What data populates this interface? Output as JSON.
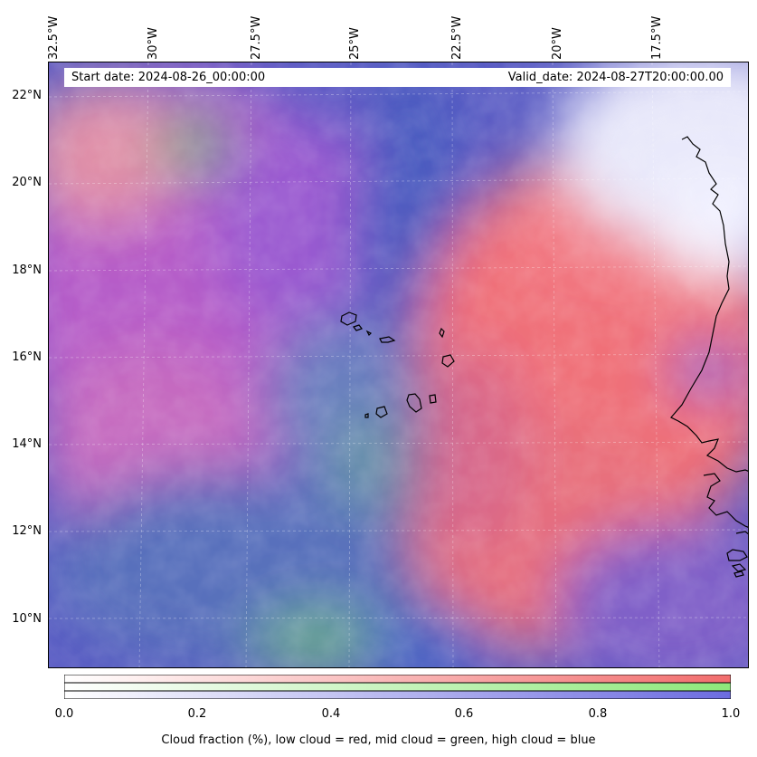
{
  "header": {
    "start_date": "Start date: 2024-08-26_00:00:00",
    "valid_date": "Valid_date: 2024-08-27T20:00:00.00"
  },
  "lon_labels": [
    "32.5°W",
    "30°W",
    "27.5°W",
    "25°W",
    "22.5°W",
    "20°W",
    "17.5°W"
  ],
  "lat_labels": [
    "22°N",
    "20°N",
    "18°N",
    "16°N",
    "14°N",
    "12°N",
    "10°N"
  ],
  "colorbar": {
    "ticks": [
      "0.0",
      "0.2",
      "0.4",
      "0.6",
      "0.8",
      "1.0"
    ],
    "label": "Cloud fraction (%), low cloud = red, mid cloud = green, high cloud = blue",
    "colors": {
      "low": "#f26d6d",
      "mid": "#8de87a",
      "high": "#6c6ce0"
    }
  }
}
